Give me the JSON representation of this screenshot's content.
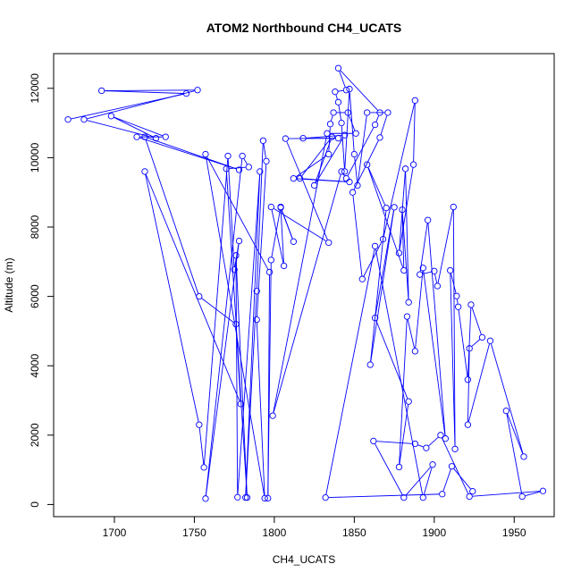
{
  "chart_data": {
    "type": "line",
    "title": "ATOM2 Northbound CH4_UCATS",
    "xlabel": "CH4_UCATS",
    "ylabel": "Altitude (m)",
    "xlim": [
      1662,
      1975
    ],
    "ylim": [
      -350,
      13000
    ],
    "xticks": [
      1700,
      1750,
      1800,
      1850,
      1900,
      1950
    ],
    "yticks": [
      0,
      2000,
      4000,
      6000,
      8000,
      10000,
      12000
    ],
    "grid": false,
    "legend": "none",
    "color": "#0000ff",
    "marker": "open-circle",
    "series": [
      {
        "points": [
          [
            1671,
            11100
          ],
          [
            1745,
            11850
          ],
          [
            1692,
            11930
          ],
          [
            1752,
            11950
          ],
          [
            1681,
            11100
          ],
          [
            1726,
            10560
          ],
          [
            1698,
            11200
          ],
          [
            1732,
            10600
          ],
          [
            1714,
            10600
          ],
          [
            1778,
            9650
          ],
          [
            1719,
            10600
          ],
          [
            1753,
            6000
          ],
          [
            1776,
            5200
          ],
          [
            1779,
            2900
          ],
          [
            1719,
            9600
          ],
          [
            1753,
            2300
          ],
          [
            1756,
            1070
          ],
          [
            1771,
            10050
          ],
          [
            1775,
            6770
          ],
          [
            1778,
            7600
          ],
          [
            1757,
            170
          ],
          [
            1780,
            10050
          ],
          [
            1784,
            9730
          ],
          [
            1770,
            9680
          ],
          [
            1783,
            200
          ],
          [
            1776,
            7180
          ],
          [
            1777,
            210
          ],
          [
            1791,
            9600
          ],
          [
            1782,
            200
          ],
          [
            1789,
            6150
          ],
          [
            1793,
            10490
          ],
          [
            1795,
            9900
          ],
          [
            1789,
            5330
          ],
          [
            1794,
            180
          ],
          [
            1757,
            10100
          ],
          [
            1797,
            6700
          ],
          [
            1796,
            180
          ],
          [
            1798,
            7050
          ],
          [
            1804,
            8580
          ],
          [
            1812,
            7580
          ],
          [
            1804,
            8560
          ],
          [
            1806,
            6880
          ],
          [
            1798,
            8580
          ],
          [
            1834,
            7550
          ],
          [
            1807,
            10550
          ],
          [
            1840,
            10560
          ],
          [
            1818,
            10560
          ],
          [
            1844,
            10650
          ],
          [
            1825,
            9200
          ],
          [
            1836,
            10600
          ],
          [
            1816,
            9400
          ],
          [
            1847,
            9300
          ],
          [
            1812,
            9400
          ],
          [
            1834,
            10100
          ],
          [
            1835,
            10970
          ],
          [
            1837,
            11300
          ],
          [
            1846,
            11300
          ],
          [
            1851,
            10700
          ],
          [
            1833,
            10700
          ],
          [
            1799,
            2560
          ],
          [
            1842,
            9600
          ],
          [
            1845,
            9400
          ],
          [
            1863,
            10950
          ],
          [
            1866,
            11300
          ],
          [
            1840,
            12580
          ],
          [
            1845,
            11950
          ],
          [
            1838,
            11900
          ],
          [
            1840,
            11600
          ],
          [
            1842,
            11000
          ],
          [
            1844,
            9600
          ],
          [
            1847,
            11980
          ],
          [
            1850,
            10100
          ],
          [
            1852,
            9200
          ],
          [
            1858,
            11300
          ],
          [
            1871,
            11300
          ],
          [
            1866,
            10580
          ],
          [
            1849,
            9000
          ],
          [
            1855,
            6500
          ],
          [
            1868,
            7650
          ],
          [
            1888,
            11650
          ],
          [
            1887,
            9800
          ],
          [
            1878,
            7250
          ],
          [
            1882,
            9680
          ],
          [
            1884,
            5830
          ],
          [
            1880,
            8500
          ],
          [
            1881,
            6750
          ],
          [
            1858,
            9800
          ],
          [
            1870,
            8550
          ],
          [
            1860,
            4030
          ],
          [
            1875,
            8570
          ],
          [
            1863,
            5380
          ],
          [
            1884,
            2970
          ],
          [
            1878,
            1080
          ],
          [
            1883,
            5420
          ],
          [
            1888,
            4420
          ],
          [
            1893,
            6820
          ],
          [
            1907,
            1900
          ],
          [
            1896,
            8200
          ],
          [
            1891,
            6630
          ],
          [
            1900,
            6730
          ],
          [
            1902,
            6300
          ],
          [
            1912,
            8580
          ],
          [
            1913,
            1600
          ],
          [
            1910,
            6750
          ],
          [
            1914,
            6010
          ],
          [
            1915,
            5700
          ],
          [
            1921,
            3600
          ],
          [
            1923,
            5760
          ],
          [
            1930,
            4820
          ],
          [
            1922,
            4500
          ],
          [
            1921,
            2300
          ],
          [
            1935,
            4720
          ],
          [
            1956,
            1380
          ],
          [
            1945,
            2700
          ],
          [
            1955,
            230
          ],
          [
            1968,
            390
          ],
          [
            1922,
            230
          ],
          [
            1904,
            2000
          ],
          [
            1895,
            1630
          ],
          [
            1888,
            1750
          ],
          [
            1862,
            1830
          ],
          [
            1881,
            200
          ],
          [
            1899,
            1150
          ],
          [
            1893,
            200
          ],
          [
            1863,
            7450
          ],
          [
            1832,
            200
          ],
          [
            1905,
            300
          ],
          [
            1911,
            1100
          ],
          [
            1924,
            380
          ]
        ]
      }
    ]
  }
}
